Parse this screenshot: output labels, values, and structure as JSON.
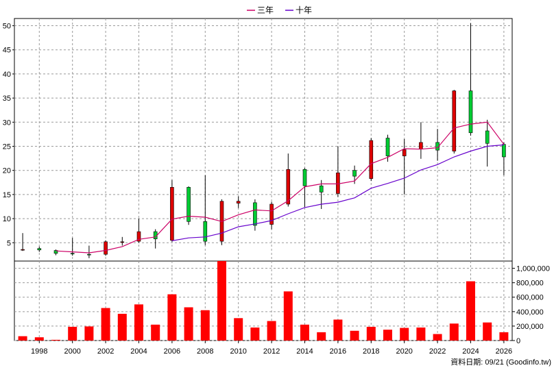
{
  "chart_data": {
    "type": "candlestick-with-volume",
    "legend": [
      {
        "label": "三年",
        "color": "#cc0066"
      },
      {
        "label": "十年",
        "color": "#6600cc"
      }
    ],
    "price_axis": {
      "range": [
        1.2,
        51.5
      ],
      "ticks": [
        5,
        10,
        15,
        20,
        25,
        30,
        35,
        40,
        45,
        50
      ]
    },
    "volume_axis": {
      "range": [
        0,
        1100000
      ],
      "ticks": [
        0,
        200000,
        400000,
        600000,
        800000,
        1000000
      ],
      "tick_labels": [
        "0",
        "200,000",
        "400,000",
        "600,000",
        "800,000",
        "1,000,000"
      ]
    },
    "x_axis": {
      "range": [
        1996.5,
        2026.5
      ],
      "ticks": [
        1998,
        2000,
        2002,
        2004,
        2006,
        2008,
        2010,
        2012,
        2014,
        2016,
        2018,
        2020,
        2022,
        2024,
        2026
      ]
    },
    "grid": true,
    "up_color": "#dd0000",
    "down_color": "#00cc33",
    "candles": [
      {
        "year": 1997,
        "open": 3.6,
        "high": 7.0,
        "low": 3.3,
        "close": 3.6
      },
      {
        "year": 1998,
        "open": 3.8,
        "high": 4.2,
        "low": 3.1,
        "close": 3.5
      },
      {
        "year": 1999,
        "open": 3.4,
        "high": 3.6,
        "low": 2.4,
        "close": 2.8
      },
      {
        "year": 2000,
        "open": 2.8,
        "high": 6.0,
        "low": 2.3,
        "close": 2.7
      },
      {
        "year": 2001,
        "open": 2.6,
        "high": 4.4,
        "low": 1.8,
        "close": 2.5
      },
      {
        "year": 2002,
        "open": 2.6,
        "high": 5.5,
        "low": 2.3,
        "close": 5.2
      },
      {
        "year": 2003,
        "open": 5.1,
        "high": 6.2,
        "low": 4.4,
        "close": 5.2
      },
      {
        "year": 2004,
        "open": 5.3,
        "high": 10.0,
        "low": 5.0,
        "close": 7.3
      },
      {
        "year": 2005,
        "open": 7.3,
        "high": 7.8,
        "low": 3.8,
        "close": 5.8
      },
      {
        "year": 2006,
        "open": 5.5,
        "high": 18.0,
        "low": 5.2,
        "close": 16.5
      },
      {
        "year": 2007,
        "open": 16.5,
        "high": 16.7,
        "low": 8.7,
        "close": 9.4
      },
      {
        "year": 2008,
        "open": 9.4,
        "high": 19.0,
        "low": 4.5,
        "close": 5.3
      },
      {
        "year": 2009,
        "open": 5.3,
        "high": 14.0,
        "low": 4.5,
        "close": 13.6
      },
      {
        "year": 2010,
        "open": 13.2,
        "high": 14.6,
        "low": 12.2,
        "close": 13.6
      },
      {
        "year": 2011,
        "open": 13.3,
        "high": 14.0,
        "low": 7.5,
        "close": 8.6
      },
      {
        "year": 2012,
        "open": 8.8,
        "high": 13.5,
        "low": 7.8,
        "close": 13.0
      },
      {
        "year": 2013,
        "open": 13.0,
        "high": 23.5,
        "low": 12.5,
        "close": 20.2
      },
      {
        "year": 2014,
        "open": 20.2,
        "high": 20.5,
        "low": 12.4,
        "close": 16.8
      },
      {
        "year": 2015,
        "open": 16.8,
        "high": 18.0,
        "low": 12.0,
        "close": 15.5
      },
      {
        "year": 2016,
        "open": 15.2,
        "high": 25.0,
        "low": 14.5,
        "close": 19.5
      },
      {
        "year": 2017,
        "open": 20.0,
        "high": 21.0,
        "low": 17.2,
        "close": 18.8
      },
      {
        "year": 2018,
        "open": 18.3,
        "high": 26.7,
        "low": 17.8,
        "close": 26.2
      },
      {
        "year": 2019,
        "open": 26.7,
        "high": 27.4,
        "low": 21.8,
        "close": 23.0
      },
      {
        "year": 2020,
        "open": 23.0,
        "high": 26.5,
        "low": 15.0,
        "close": 24.3
      },
      {
        "year": 2021,
        "open": 24.4,
        "high": 30.0,
        "low": 22.4,
        "close": 25.8
      },
      {
        "year": 2022,
        "open": 25.8,
        "high": 28.6,
        "low": 22.0,
        "close": 24.2
      },
      {
        "year": 2023,
        "open": 24.0,
        "high": 36.7,
        "low": 23.5,
        "close": 36.5
      },
      {
        "year": 2024,
        "open": 36.5,
        "high": 50.5,
        "low": 27.2,
        "close": 27.8
      },
      {
        "year": 2025,
        "open": 28.2,
        "high": 30.5,
        "low": 20.8,
        "close": 25.6
      },
      {
        "year": 2026,
        "open": 25.4,
        "high": 25.8,
        "low": 19.0,
        "close": 22.8
      }
    ],
    "ma3": [
      {
        "year": 1999,
        "value": 3.3
      },
      {
        "year": 2000,
        "value": 3.1
      },
      {
        "year": 2001,
        "value": 2.9
      },
      {
        "year": 2002,
        "value": 3.4
      },
      {
        "year": 2003,
        "value": 4.2
      },
      {
        "year": 2004,
        "value": 5.7
      },
      {
        "year": 2005,
        "value": 6.2
      },
      {
        "year": 2006,
        "value": 9.9
      },
      {
        "year": 2007,
        "value": 10.5
      },
      {
        "year": 2008,
        "value": 10.3
      },
      {
        "year": 2009,
        "value": 9.4
      },
      {
        "year": 2010,
        "value": 10.8
      },
      {
        "year": 2011,
        "value": 11.8
      },
      {
        "year": 2012,
        "value": 11.6
      },
      {
        "year": 2013,
        "value": 13.7
      },
      {
        "year": 2014,
        "value": 16.6
      },
      {
        "year": 2015,
        "value": 17.2
      },
      {
        "year": 2016,
        "value": 17.2
      },
      {
        "year": 2017,
        "value": 17.8
      },
      {
        "year": 2018,
        "value": 21.4
      },
      {
        "year": 2019,
        "value": 22.7
      },
      {
        "year": 2020,
        "value": 24.5
      },
      {
        "year": 2021,
        "value": 24.4
      },
      {
        "year": 2022,
        "value": 24.7
      },
      {
        "year": 2023,
        "value": 28.8
      },
      {
        "year": 2024,
        "value": 29.6
      },
      {
        "year": 2025,
        "value": 30.0
      },
      {
        "year": 2026,
        "value": 25.4
      }
    ],
    "ma10": [
      {
        "year": 2006,
        "value": 5.4
      },
      {
        "year": 2007,
        "value": 6.0
      },
      {
        "year": 2008,
        "value": 6.2
      },
      {
        "year": 2009,
        "value": 7.0
      },
      {
        "year": 2010,
        "value": 8.3
      },
      {
        "year": 2011,
        "value": 8.9
      },
      {
        "year": 2012,
        "value": 9.6
      },
      {
        "year": 2013,
        "value": 11.0
      },
      {
        "year": 2014,
        "value": 12.3
      },
      {
        "year": 2015,
        "value": 13.0
      },
      {
        "year": 2016,
        "value": 13.4
      },
      {
        "year": 2017,
        "value": 14.3
      },
      {
        "year": 2018,
        "value": 16.3
      },
      {
        "year": 2019,
        "value": 17.3
      },
      {
        "year": 2020,
        "value": 18.4
      },
      {
        "year": 2021,
        "value": 20.1
      },
      {
        "year": 2022,
        "value": 21.2
      },
      {
        "year": 2023,
        "value": 22.8
      },
      {
        "year": 2024,
        "value": 24.0
      },
      {
        "year": 2025,
        "value": 25.0
      },
      {
        "year": 2026,
        "value": 25.3
      }
    ],
    "volume": [
      {
        "year": 1997,
        "value": 60000
      },
      {
        "year": 1998,
        "value": 45000
      },
      {
        "year": 1999,
        "value": 10000
      },
      {
        "year": 2000,
        "value": 190000
      },
      {
        "year": 2001,
        "value": 195000
      },
      {
        "year": 2002,
        "value": 450000
      },
      {
        "year": 2003,
        "value": 370000
      },
      {
        "year": 2004,
        "value": 500000
      },
      {
        "year": 2005,
        "value": 220000
      },
      {
        "year": 2006,
        "value": 640000
      },
      {
        "year": 2007,
        "value": 460000
      },
      {
        "year": 2008,
        "value": 420000
      },
      {
        "year": 2009,
        "value": 1100000
      },
      {
        "year": 2010,
        "value": 310000
      },
      {
        "year": 2011,
        "value": 180000
      },
      {
        "year": 2012,
        "value": 270000
      },
      {
        "year": 2013,
        "value": 680000
      },
      {
        "year": 2014,
        "value": 220000
      },
      {
        "year": 2015,
        "value": 115000
      },
      {
        "year": 2016,
        "value": 290000
      },
      {
        "year": 2017,
        "value": 135000
      },
      {
        "year": 2018,
        "value": 190000
      },
      {
        "year": 2019,
        "value": 150000
      },
      {
        "year": 2020,
        "value": 175000
      },
      {
        "year": 2021,
        "value": 180000
      },
      {
        "year": 2022,
        "value": 90000
      },
      {
        "year": 2023,
        "value": 235000
      },
      {
        "year": 2024,
        "value": 820000
      },
      {
        "year": 2025,
        "value": 250000
      },
      {
        "year": 2026,
        "value": 115000
      }
    ],
    "volume_color": "#ff0000",
    "source_note": "資料日期: 09/21  (Goodinfo.tw)"
  }
}
